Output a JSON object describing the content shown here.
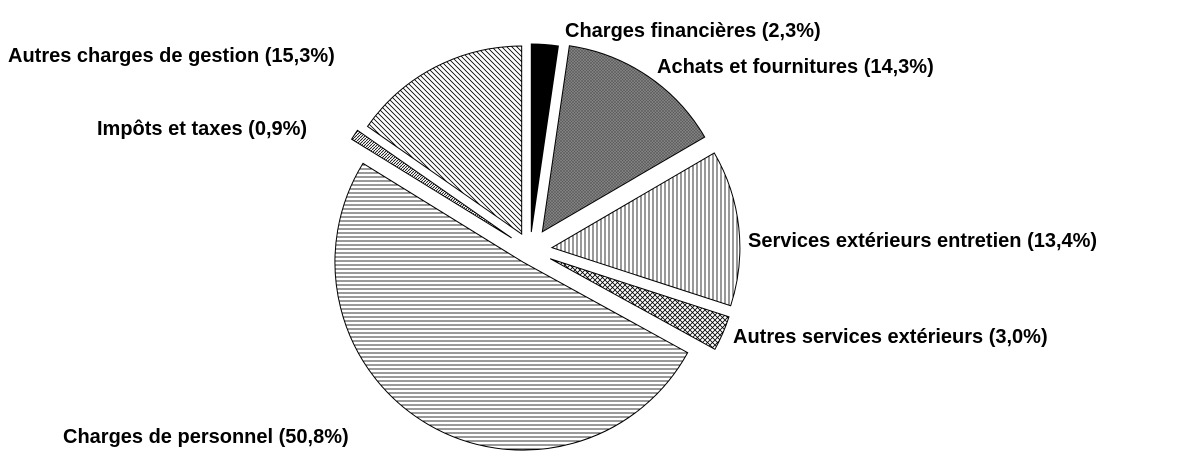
{
  "chart_data": {
    "type": "pie",
    "categories": [
      "Charges financières",
      "Achats et fournitures",
      "Services extérieurs entretien",
      "Autres services extérieurs",
      "Charges de personnel",
      "Impôts et taxes",
      "Autres charges de gestion"
    ],
    "values": [
      2.3,
      14.3,
      13.4,
      3.0,
      50.8,
      0.9,
      15.3
    ],
    "value_labels": [
      "(2,3%)",
      "(14,3%)",
      "(13,4%)",
      "(3,0%)",
      "(50,8%)",
      "(0,9%)",
      "(15,3%)"
    ]
  }
}
